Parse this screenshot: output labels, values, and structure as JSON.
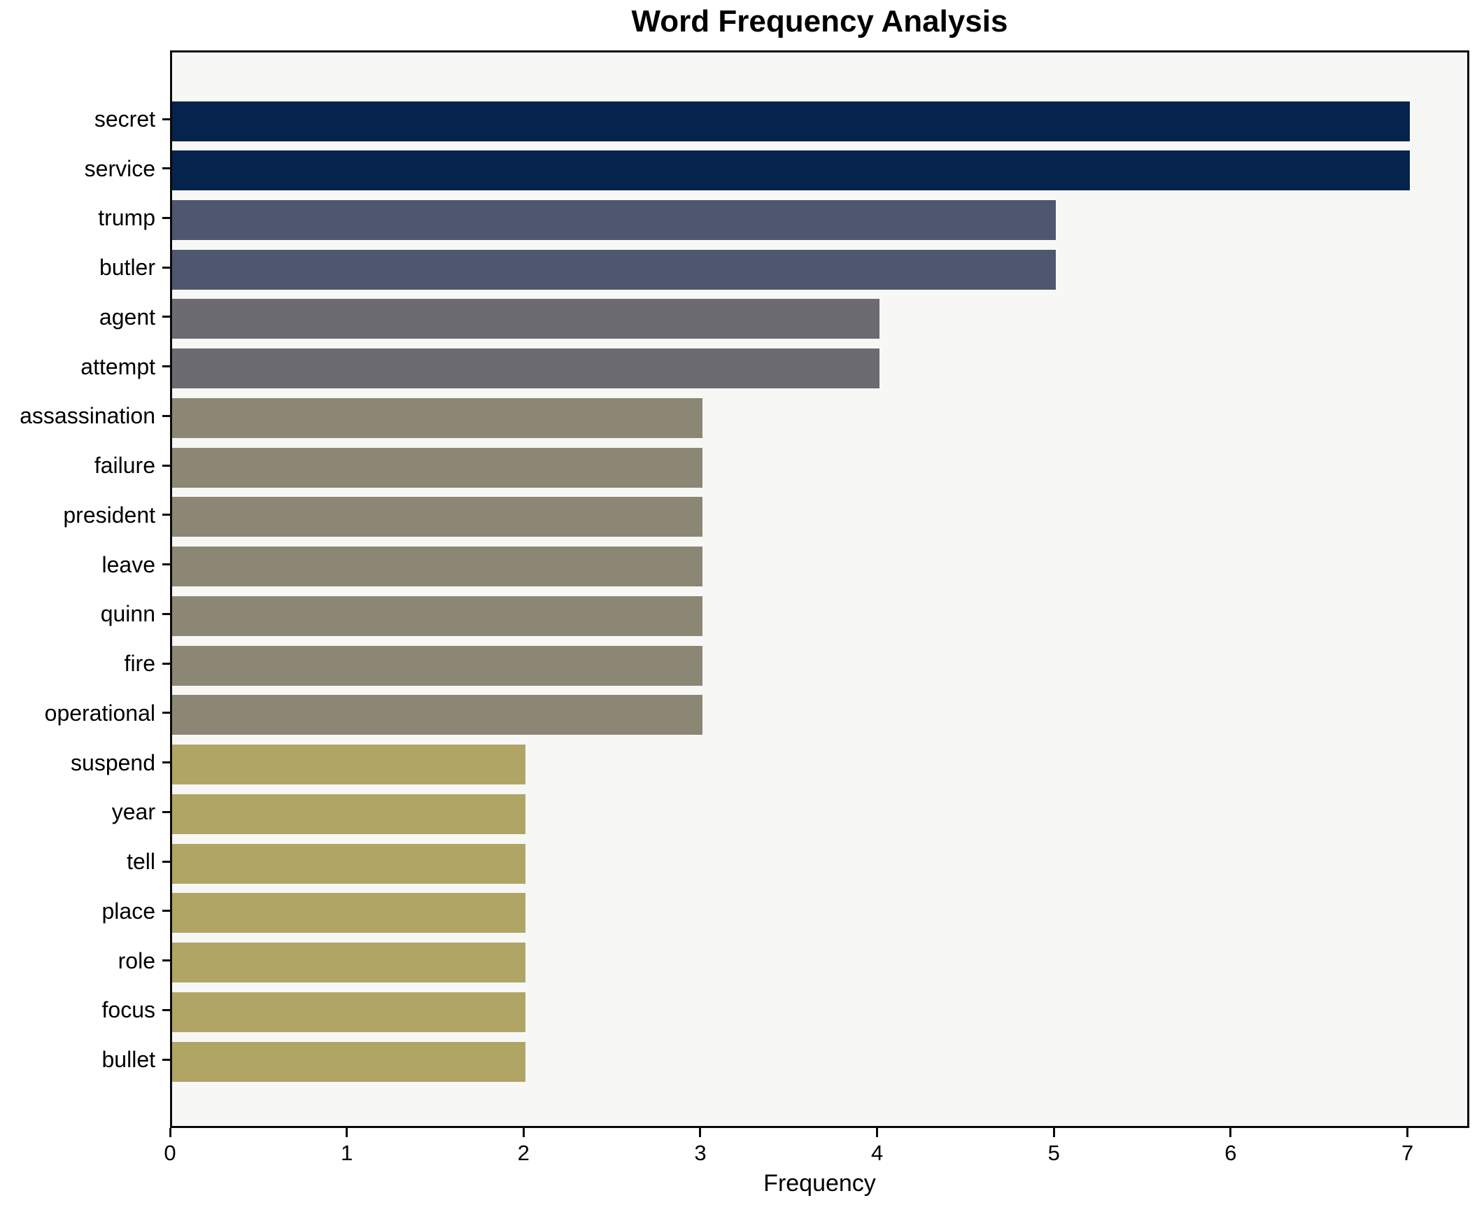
{
  "chart_data": {
    "type": "bar",
    "orientation": "horizontal",
    "title": "Word Frequency Analysis",
    "xlabel": "Frequency",
    "ylabel": "",
    "xlim": [
      0,
      7.35
    ],
    "x_ticks": [
      0,
      1,
      2,
      3,
      4,
      5,
      6,
      7
    ],
    "grid": false,
    "legend": "none",
    "colors": {
      "freq7": "#05234c",
      "freq5": "#4f576f",
      "freq4": "#6b6b71",
      "freq3": "#8c8674",
      "freq2": "#b0a565",
      "plot_background": "#f7f7f6",
      "page_background": "#ffffff",
      "spine": "#0a0a0a"
    },
    "bars": [
      {
        "label": "secret",
        "value": 7,
        "color": "#05234c"
      },
      {
        "label": "service",
        "value": 7,
        "color": "#05234c"
      },
      {
        "label": "trump",
        "value": 5,
        "color": "#4f576f"
      },
      {
        "label": "butler",
        "value": 5,
        "color": "#4f576f"
      },
      {
        "label": "agent",
        "value": 4,
        "color": "#6b6b71"
      },
      {
        "label": "attempt",
        "value": 4,
        "color": "#6b6b71"
      },
      {
        "label": "assassination",
        "value": 3,
        "color": "#8c8674"
      },
      {
        "label": "failure",
        "value": 3,
        "color": "#8c8674"
      },
      {
        "label": "president",
        "value": 3,
        "color": "#8c8674"
      },
      {
        "label": "leave",
        "value": 3,
        "color": "#8c8674"
      },
      {
        "label": "quinn",
        "value": 3,
        "color": "#8c8674"
      },
      {
        "label": "fire",
        "value": 3,
        "color": "#8c8674"
      },
      {
        "label": "operational",
        "value": 3,
        "color": "#8c8674"
      },
      {
        "label": "suspend",
        "value": 2,
        "color": "#b0a565"
      },
      {
        "label": "year",
        "value": 2,
        "color": "#b0a565"
      },
      {
        "label": "tell",
        "value": 2,
        "color": "#b0a565"
      },
      {
        "label": "place",
        "value": 2,
        "color": "#b0a565"
      },
      {
        "label": "role",
        "value": 2,
        "color": "#b0a565"
      },
      {
        "label": "focus",
        "value": 2,
        "color": "#b0a565"
      },
      {
        "label": "bullet",
        "value": 2,
        "color": "#b0a565"
      }
    ]
  }
}
